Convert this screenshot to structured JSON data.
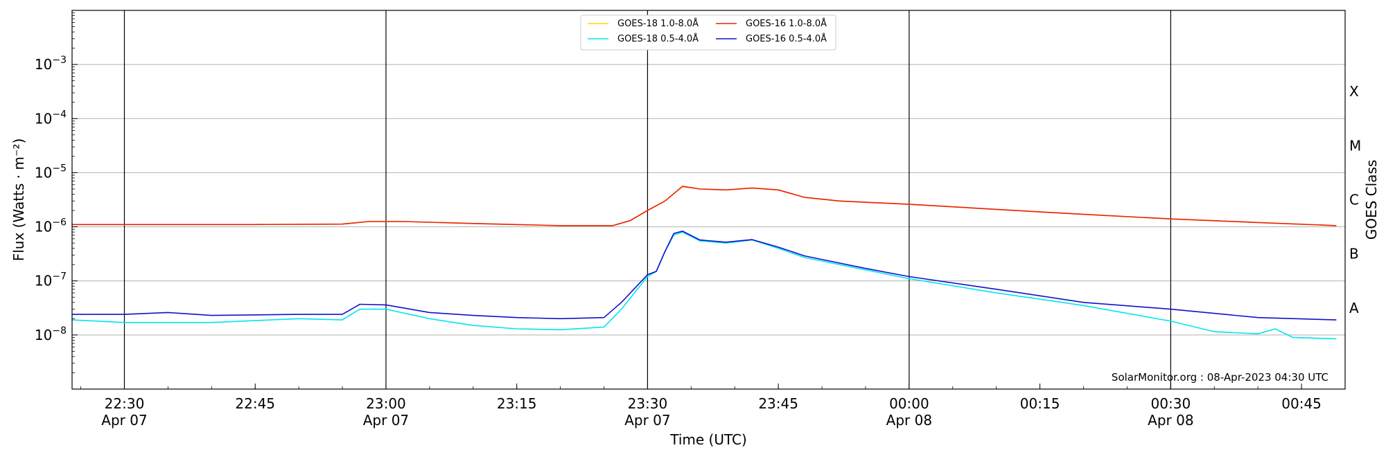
{
  "chart_data": {
    "type": "line",
    "title": "",
    "xlabel": "Time (UTC)",
    "ylabel": "Flux (Watts · m⁻²)",
    "ylabel_right": "GOES Class",
    "yscale": "log",
    "ylim": [
      1e-09,
      0.01
    ],
    "xlim": [
      "2023-04-07 22:24",
      "2023-04-08 00:50"
    ],
    "grid": "horizontal",
    "legend_position": "top-center",
    "y_ticks": [
      {
        "value": 1e-08,
        "base": "10",
        "exp": "−8"
      },
      {
        "value": 1e-07,
        "base": "10",
        "exp": "−7"
      },
      {
        "value": 1e-06,
        "base": "10",
        "exp": "−6"
      },
      {
        "value": 1e-05,
        "base": "10",
        "exp": "−5"
      },
      {
        "value": 0.0001,
        "base": "10",
        "exp": "−4"
      },
      {
        "value": 0.001,
        "base": "10",
        "exp": "−3"
      }
    ],
    "x_ticks": [
      {
        "time": "2023-04-07 22:30",
        "label": "22:30",
        "date": "Apr 07"
      },
      {
        "time": "2023-04-07 22:45",
        "label": "22:45",
        "date": ""
      },
      {
        "time": "2023-04-07 23:00",
        "label": "23:00",
        "date": "Apr 07"
      },
      {
        "time": "2023-04-07 23:15",
        "label": "23:15",
        "date": ""
      },
      {
        "time": "2023-04-07 23:30",
        "label": "23:30",
        "date": "Apr 07"
      },
      {
        "time": "2023-04-07 23:45",
        "label": "23:45",
        "date": ""
      },
      {
        "time": "2023-04-08 00:00",
        "label": "00:00",
        "date": "Apr 08"
      },
      {
        "time": "2023-04-08 00:15",
        "label": "00:15",
        "date": ""
      },
      {
        "time": "2023-04-08 00:30",
        "label": "00:30",
        "date": "Apr 08"
      },
      {
        "time": "2023-04-08 00:45",
        "label": "00:45",
        "date": ""
      }
    ],
    "vertical_lines": [
      "2023-04-07 22:30",
      "2023-04-07 23:00",
      "2023-04-07 23:30",
      "2023-04-08 00:00",
      "2023-04-08 00:30"
    ],
    "goes_classes": [
      {
        "label": "A",
        "value": 3.16e-08
      },
      {
        "label": "B",
        "value": 3.16e-07
      },
      {
        "label": "C",
        "value": 3.16e-06
      },
      {
        "label": "M",
        "value": 3.16e-05
      },
      {
        "label": "X",
        "value": 0.000316
      }
    ],
    "legend": [
      {
        "label": "GOES-18 1.0-8.0Å",
        "color": "#ffd700"
      },
      {
        "label": "GOES-18 0.5-4.0Å",
        "color": "#00e5ee"
      },
      {
        "label": "GOES-16 1.0-8.0Å",
        "color": "#e8200a"
      },
      {
        "label": "GOES-16 0.5-4.0Å",
        "color": "#1010cc"
      }
    ],
    "series": [
      {
        "name": "GOES-18 1.0-8.0Å",
        "color": "#ffd700",
        "x": [
          "2023-04-07 22:24",
          "2023-04-07 22:30",
          "2023-04-07 22:45",
          "2023-04-07 22:55",
          "2023-04-07 22:58",
          "2023-04-07 23:02",
          "2023-04-07 23:10",
          "2023-04-07 23:20",
          "2023-04-07 23:26",
          "2023-04-07 23:28",
          "2023-04-07 23:30",
          "2023-04-07 23:32",
          "2023-04-07 23:34",
          "2023-04-07 23:36",
          "2023-04-07 23:39",
          "2023-04-07 23:42",
          "2023-04-07 23:45",
          "2023-04-07 23:48",
          "2023-04-07 23:52",
          "2023-04-08 00:00",
          "2023-04-08 00:10",
          "2023-04-08 00:20",
          "2023-04-08 00:30",
          "2023-04-08 00:40",
          "2023-04-08 00:49"
        ],
        "values": [
          1.1e-06,
          1.1e-06,
          1.1e-06,
          1.12e-06,
          1.25e-06,
          1.25e-06,
          1.15e-06,
          1.05e-06,
          1.05e-06,
          1.3e-06,
          2e-06,
          3e-06,
          5.5e-06,
          5e-06,
          4.8e-06,
          5.2e-06,
          4.8e-06,
          3.5e-06,
          3e-06,
          2.6e-06,
          2.1e-06,
          1.7e-06,
          1.4e-06,
          1.2e-06,
          1.05e-06
        ]
      },
      {
        "name": "GOES-16 1.0-8.0Å",
        "color": "#e8200a",
        "x": [
          "2023-04-07 22:24",
          "2023-04-07 22:30",
          "2023-04-07 22:45",
          "2023-04-07 22:55",
          "2023-04-07 22:58",
          "2023-04-07 23:02",
          "2023-04-07 23:10",
          "2023-04-07 23:20",
          "2023-04-07 23:26",
          "2023-04-07 23:28",
          "2023-04-07 23:30",
          "2023-04-07 23:32",
          "2023-04-07 23:34",
          "2023-04-07 23:36",
          "2023-04-07 23:39",
          "2023-04-07 23:42",
          "2023-04-07 23:45",
          "2023-04-07 23:48",
          "2023-04-07 23:52",
          "2023-04-08 00:00",
          "2023-04-08 00:10",
          "2023-04-08 00:20",
          "2023-04-08 00:30",
          "2023-04-08 00:40",
          "2023-04-08 00:49"
        ],
        "values": [
          1.1e-06,
          1.1e-06,
          1.1e-06,
          1.12e-06,
          1.25e-06,
          1.25e-06,
          1.15e-06,
          1.05e-06,
          1.05e-06,
          1.3e-06,
          2e-06,
          3e-06,
          5.6e-06,
          5e-06,
          4.8e-06,
          5.2e-06,
          4.8e-06,
          3.5e-06,
          3e-06,
          2.6e-06,
          2.1e-06,
          1.7e-06,
          1.4e-06,
          1.2e-06,
          1.05e-06
        ]
      },
      {
        "name": "GOES-18 0.5-4.0Å",
        "color": "#00e5ee",
        "x": [
          "2023-04-07 22:24",
          "2023-04-07 22:30",
          "2023-04-07 22:40",
          "2023-04-07 22:50",
          "2023-04-07 22:55",
          "2023-04-07 22:57",
          "2023-04-07 23:00",
          "2023-04-07 23:05",
          "2023-04-07 23:10",
          "2023-04-07 23:15",
          "2023-04-07 23:20",
          "2023-04-07 23:25",
          "2023-04-07 23:27",
          "2023-04-07 23:30",
          "2023-04-07 23:31",
          "2023-04-07 23:32",
          "2023-04-07 23:33",
          "2023-04-07 23:34",
          "2023-04-07 23:36",
          "2023-04-07 23:39",
          "2023-04-07 23:42",
          "2023-04-07 23:45",
          "2023-04-07 23:48",
          "2023-04-07 23:55",
          "2023-04-08 00:00",
          "2023-04-08 00:10",
          "2023-04-08 00:20",
          "2023-04-08 00:30",
          "2023-04-08 00:35",
          "2023-04-08 00:40",
          "2023-04-08 00:42",
          "2023-04-08 00:44",
          "2023-04-08 00:49"
        ],
        "values": [
          1.9e-08,
          1.7e-08,
          1.7e-08,
          2e-08,
          1.9e-08,
          3e-08,
          3e-08,
          2e-08,
          1.5e-08,
          1.3e-08,
          1.25e-08,
          1.4e-08,
          3e-08,
          1.2e-07,
          1.5e-07,
          3.5e-07,
          7e-07,
          8e-07,
          5.5e-07,
          5e-07,
          5.7e-07,
          4e-07,
          2.7e-07,
          1.6e-07,
          1.1e-07,
          6e-08,
          3.5e-08,
          1.8e-08,
          1.15e-08,
          1.05e-08,
          1.3e-08,
          9e-09,
          8.5e-09
        ]
      },
      {
        "name": "GOES-16 0.5-4.0Å",
        "color": "#1010cc",
        "x": [
          "2023-04-07 22:24",
          "2023-04-07 22:30",
          "2023-04-07 22:35",
          "2023-04-07 22:40",
          "2023-04-07 22:50",
          "2023-04-07 22:55",
          "2023-04-07 22:57",
          "2023-04-07 23:00",
          "2023-04-07 23:05",
          "2023-04-07 23:10",
          "2023-04-07 23:15",
          "2023-04-07 23:20",
          "2023-04-07 23:25",
          "2023-04-07 23:27",
          "2023-04-07 23:30",
          "2023-04-07 23:31",
          "2023-04-07 23:32",
          "2023-04-07 23:33",
          "2023-04-07 23:34",
          "2023-04-07 23:36",
          "2023-04-07 23:39",
          "2023-04-07 23:42",
          "2023-04-07 23:45",
          "2023-04-07 23:48",
          "2023-04-07 23:55",
          "2023-04-08 00:00",
          "2023-04-08 00:10",
          "2023-04-08 00:20",
          "2023-04-08 00:30",
          "2023-04-08 00:40",
          "2023-04-08 00:49"
        ],
        "values": [
          2.4e-08,
          2.4e-08,
          2.6e-08,
          2.3e-08,
          2.4e-08,
          2.4e-08,
          3.7e-08,
          3.6e-08,
          2.6e-08,
          2.3e-08,
          2.1e-08,
          2e-08,
          2.1e-08,
          4e-08,
          1.3e-07,
          1.5e-07,
          3.5e-07,
          7.5e-07,
          8.3e-07,
          5.7e-07,
          5.2e-07,
          5.8e-07,
          4.2e-07,
          2.9e-07,
          1.7e-07,
          1.2e-07,
          7e-08,
          4e-08,
          3e-08,
          2.1e-08,
          1.9e-08
        ]
      }
    ],
    "annotation": "SolarMonitor.org : 08-Apr-2023 04:30 UTC"
  }
}
